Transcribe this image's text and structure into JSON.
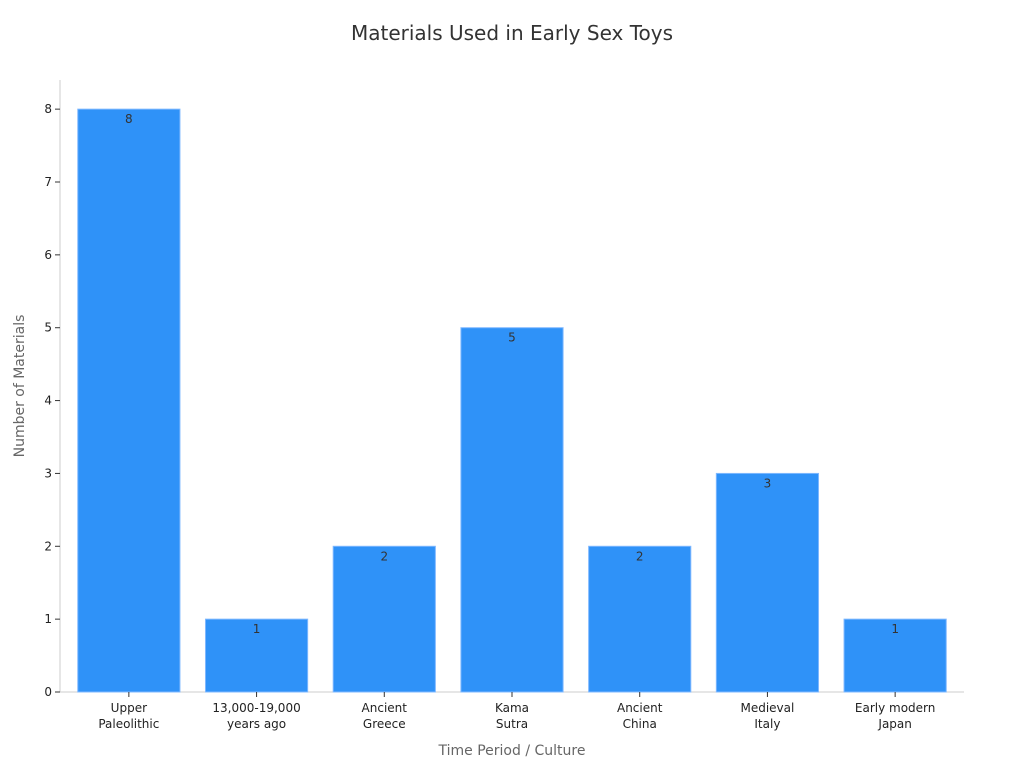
{
  "chart_data": {
    "type": "bar",
    "title": "Materials Used in Early Sex Toys",
    "xlabel": "Time Period / Culture",
    "ylabel": "Number of Materials",
    "categories": [
      [
        "Upper",
        "Paleolithic"
      ],
      [
        "13,000-19,000",
        "years ago"
      ],
      [
        "Ancient",
        "Greece"
      ],
      [
        "Kama",
        "Sutra"
      ],
      [
        "Ancient",
        "China"
      ],
      [
        "Medieval",
        "Italy"
      ],
      [
        "Early modern",
        "Japan"
      ]
    ],
    "values": [
      8,
      1,
      2,
      5,
      2,
      3,
      1
    ],
    "ylim": [
      0,
      8.4
    ],
    "yticks": [
      0,
      1,
      2,
      3,
      4,
      5,
      6,
      7,
      8
    ],
    "bar_color": "#2f92f8",
    "grid": false,
    "legend": "none"
  }
}
